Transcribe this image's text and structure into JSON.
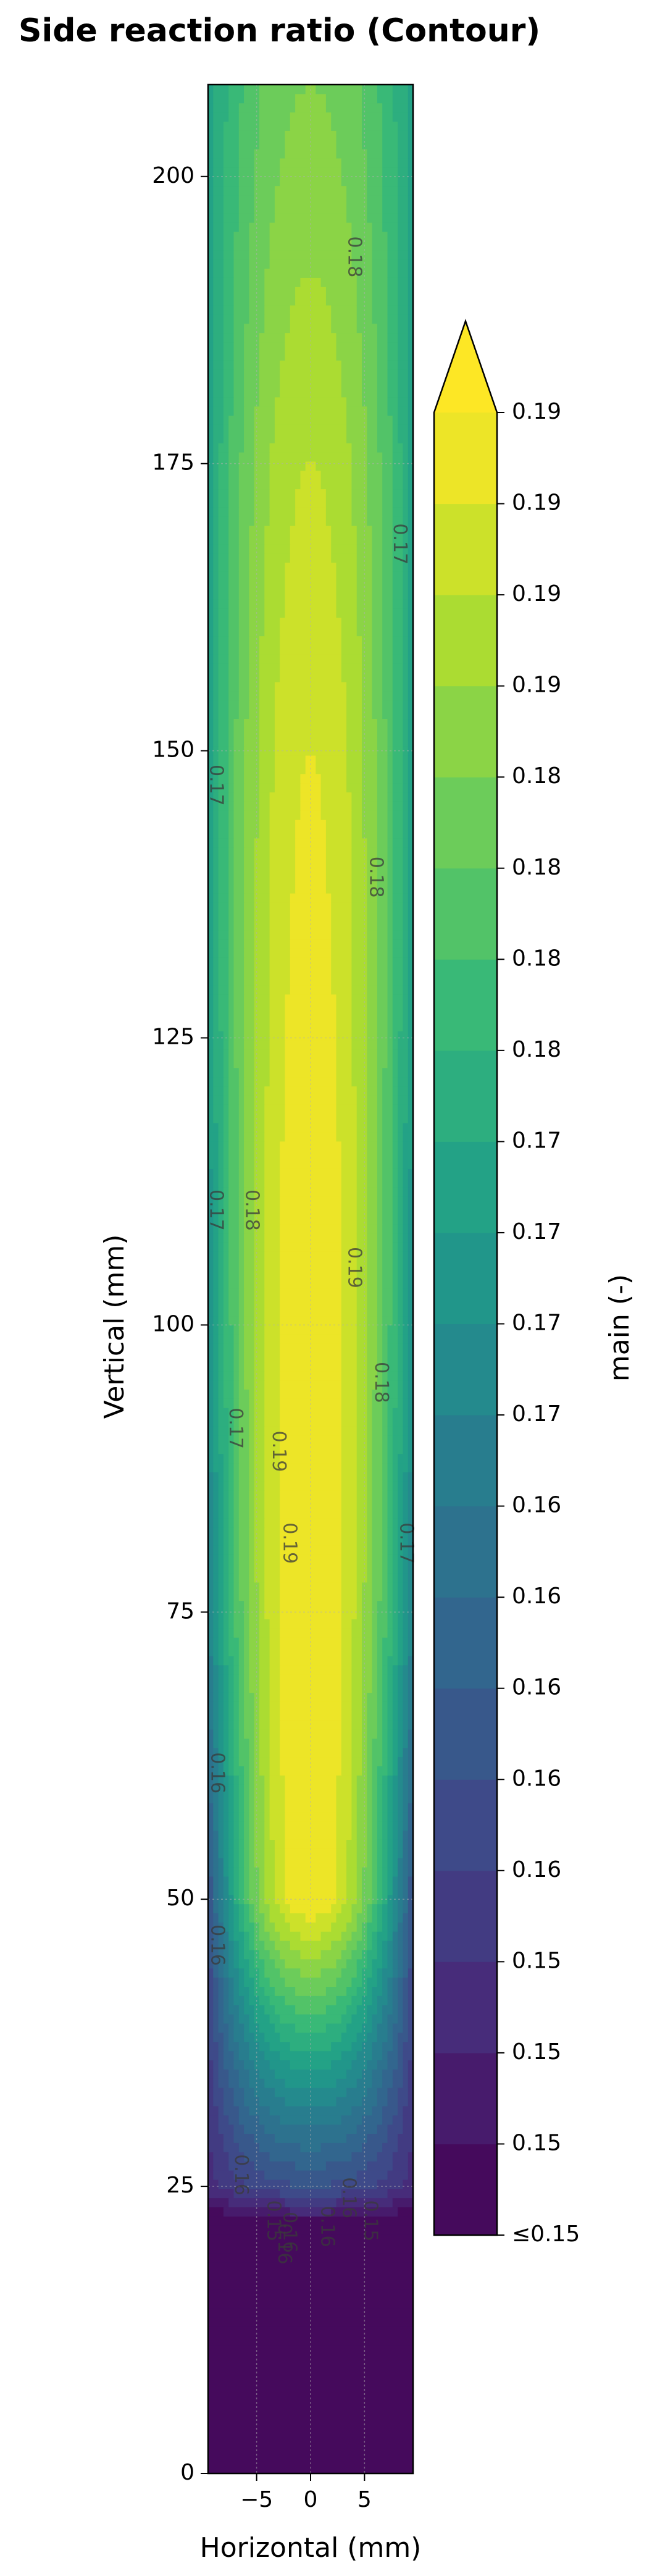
{
  "chart_data": {
    "type": "contour",
    "title": "Side reaction ratio (Contour)",
    "xlabel": "Horizontal (mm)",
    "ylabel": "Vertical (mm)",
    "xlim": [
      -9.5,
      9.5
    ],
    "ylim": [
      0,
      208
    ],
    "xticks": [
      -5,
      0,
      5
    ],
    "xtick_labels": [
      "−5",
      "0",
      "5"
    ],
    "yticks": [
      0,
      25,
      50,
      75,
      100,
      125,
      150,
      175,
      200
    ],
    "yscale": "linear",
    "grid": true,
    "colormap": "viridis",
    "colorbar": {
      "label": "main (-)",
      "extend": "max",
      "tick_labels": [
        "≤0.15",
        "0.15",
        "0.15",
        "0.15",
        "0.16",
        "0.16",
        "0.16",
        "0.16",
        "0.16",
        "0.17",
        "0.17",
        "0.17",
        "0.17",
        "0.18",
        "0.18",
        "0.18",
        "0.18",
        "0.19",
        "0.19",
        "0.19",
        "0.19"
      ]
    },
    "field": {
      "value_range": [
        0.15,
        0.19
      ],
      "maximum_region": {
        "x_center": 0,
        "y_range": [
          45,
          185
        ],
        "value": 0.19
      },
      "notes_values_by_height": [
        {
          "y": 10,
          "center": 0.15,
          "edge": 0.15
        },
        {
          "y": 22,
          "center": 0.152,
          "edge": 0.15
        },
        {
          "y": 25,
          "center": 0.16,
          "edge": 0.155
        },
        {
          "y": 50,
          "center": 0.19,
          "edge": 0.16
        },
        {
          "y": 75,
          "center": 0.19,
          "edge": 0.168
        },
        {
          "y": 100,
          "center": 0.19,
          "edge": 0.17
        },
        {
          "y": 125,
          "center": 0.189,
          "edge": 0.172
        },
        {
          "y": 150,
          "center": 0.188,
          "edge": 0.173
        },
        {
          "y": 175,
          "center": 0.186,
          "edge": 0.173
        },
        {
          "y": 208,
          "center": 0.182,
          "edge": 0.173
        }
      ]
    },
    "contour_labels": [
      {
        "text": "0.18",
        "x": 4.0,
        "y": 193
      },
      {
        "text": "0.17",
        "x": 8.2,
        "y": 168
      },
      {
        "text": "0.17",
        "x": -8.8,
        "y": 147
      },
      {
        "text": "0.18",
        "x": 6.0,
        "y": 139
      },
      {
        "text": "0.17",
        "x": -8.8,
        "y": 110
      },
      {
        "text": "0.18",
        "x": -5.5,
        "y": 110
      },
      {
        "text": "0.19",
        "x": 4.0,
        "y": 105
      },
      {
        "text": "0.18",
        "x": 6.5,
        "y": 95
      },
      {
        "text": "0.17",
        "x": -7.0,
        "y": 91
      },
      {
        "text": "0.19",
        "x": -3.0,
        "y": 89
      },
      {
        "text": "0.19",
        "x": -2.0,
        "y": 81
      },
      {
        "text": "0.17",
        "x": 8.8,
        "y": 81
      },
      {
        "text": "0.16",
        "x": -8.7,
        "y": 61
      },
      {
        "text": "0.16",
        "x": -8.7,
        "y": 46
      },
      {
        "text": "0.16",
        "x": -6.5,
        "y": 26
      },
      {
        "text": "0.16",
        "x": 3.5,
        "y": 24
      },
      {
        "text": "0.15",
        "x": -3.5,
        "y": 22
      },
      {
        "text": "0.16",
        "x": 1.5,
        "y": 21.5
      },
      {
        "text": "0.15",
        "x": 5.5,
        "y": 22
      },
      {
        "text": "0.16",
        "x": -2.0,
        "y": 21
      },
      {
        "text": "0.16",
        "x": -2.5,
        "y": 20
      }
    ]
  }
}
